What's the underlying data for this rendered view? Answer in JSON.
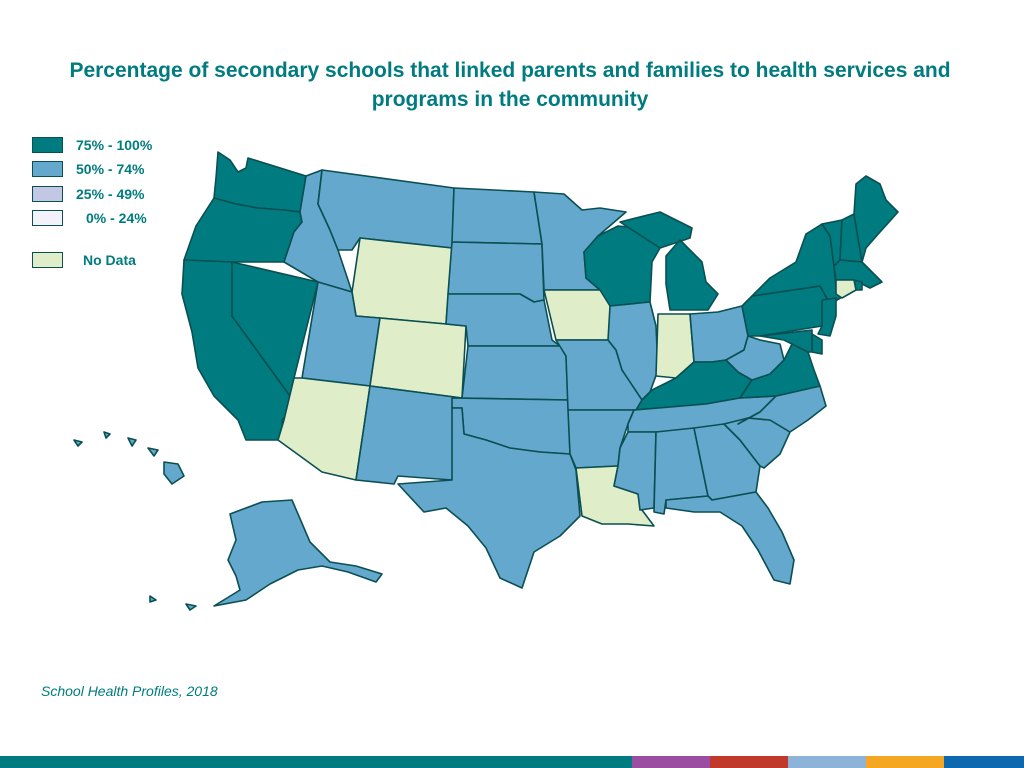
{
  "title": "Percentage of secondary schools that linked parents and families to health services and programs in the community",
  "legend": [
    {
      "label": "75% - 100%",
      "color": "#007c80"
    },
    {
      "label": "50% - 74%",
      "color": "#64a8cd"
    },
    {
      "label": "25% - 49%",
      "color": "#c2c8e4"
    },
    {
      "label": "0% - 24%",
      "color": "#f3f1fa"
    },
    {
      "label": "No Data",
      "color": "#dfeec9"
    }
  ],
  "colors": {
    "high": "#007c80",
    "mid": "#64a8cd",
    "low": "#c2c8e4",
    "lowest": "#f3f1fa",
    "no_data": "#dfeec9",
    "border": "#0b4f52"
  },
  "map_data": {
    "75-100": [
      "WA",
      "OR",
      "CA",
      "NV",
      "WI",
      "MI",
      "KY",
      "VA",
      "PA",
      "NY",
      "VT",
      "NH",
      "ME",
      "MA",
      "NJ",
      "MD",
      "DE",
      "RI"
    ],
    "50-74": [
      "ID",
      "MT",
      "ND",
      "SD",
      "MN",
      "NE",
      "UT",
      "KS",
      "MO",
      "IL",
      "OH",
      "WV",
      "NM",
      "TX",
      "OK",
      "AR",
      "TN",
      "NC",
      "SC",
      "GA",
      "AL",
      "MS",
      "FL",
      "AK",
      "HI"
    ],
    "25-49": [],
    "0-24": [],
    "no_data": [
      "WY",
      "CO",
      "AZ",
      "IA",
      "IN",
      "LA",
      "CT"
    ]
  },
  "source": "School Health Profiles, 2018",
  "footer_colors": [
    "#007c80",
    "#9b4ea1",
    "#c0392b",
    "#8db4d8",
    "#f5a623",
    "#0e68b0"
  ]
}
